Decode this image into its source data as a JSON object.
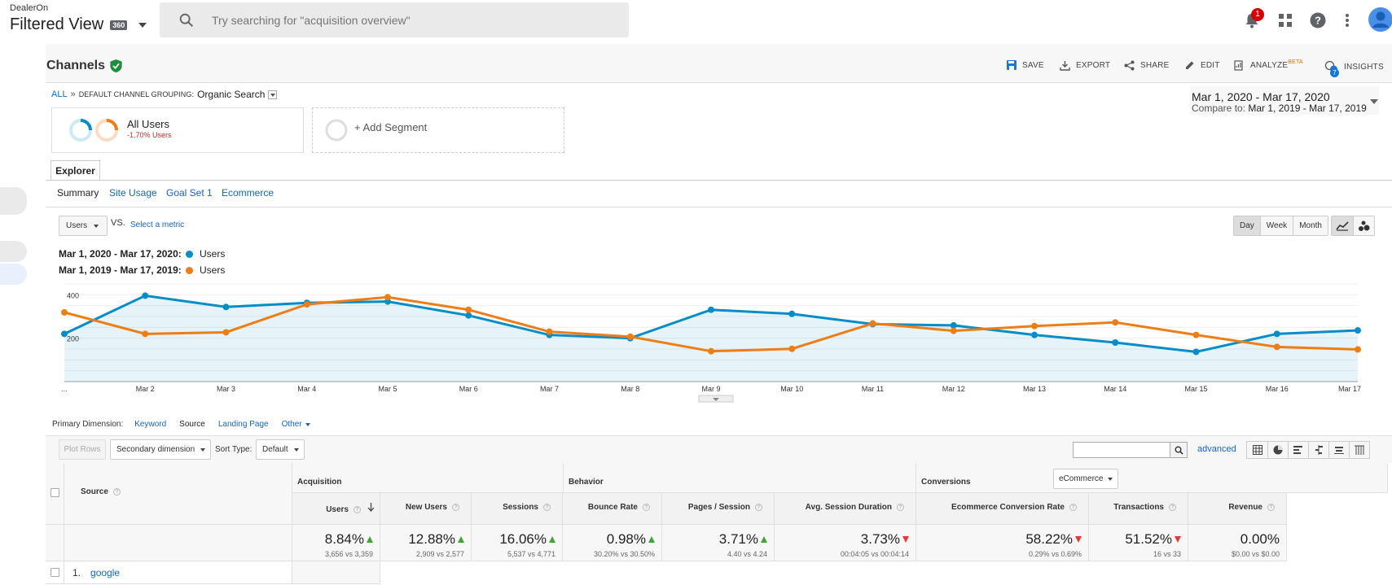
{
  "app": {
    "account": "DealerOn",
    "view": "Filtered View",
    "view_badge": "360",
    "search_placeholder": "Try searching for \"acquisition overview\"",
    "notification_count": "1"
  },
  "report": {
    "title": "Channels",
    "toolbar": {
      "save": "SAVE",
      "export": "EXPORT",
      "share": "SHARE",
      "edit": "EDIT",
      "analyze": "ANALYZE",
      "analyze_badge": "BETA",
      "insights": "INSIGHTS",
      "insights_count": "7"
    },
    "breadcrumb": {
      "all": "ALL",
      "sep": "»",
      "key": "DEFAULT CHANNEL GROUPING:",
      "value": "Organic Search"
    },
    "date_range": {
      "main": "Mar 1, 2020 - Mar 17, 2020",
      "compare_label": "Compare to:",
      "compare": "Mar 1, 2019 - Mar 17, 2019"
    },
    "segments": {
      "name": "All Users",
      "sub": "-1.70% Users",
      "add": "+ Add Segment"
    },
    "tabs": {
      "explorer": "Explorer",
      "sub": [
        "Summary",
        "Site Usage",
        "Goal Set 1",
        "Ecommerce"
      ]
    },
    "metric": {
      "selected": "Users",
      "vs": "VS.",
      "select": "Select a metric"
    },
    "periods": [
      "Day",
      "Week",
      "Month"
    ],
    "legend": [
      {
        "range": "Mar 1, 2020 - Mar 17, 2020:",
        "metric": "Users",
        "color": "#058dc7"
      },
      {
        "range": "Mar 1, 2019 - Mar 17, 2019:",
        "metric": "Users",
        "color": "#ed7e17"
      }
    ],
    "primary_dimension": {
      "label": "Primary Dimension:",
      "items": [
        "Keyword",
        "Source",
        "Landing Page",
        "Other"
      ],
      "active": "Source"
    },
    "controls": {
      "plot_rows": "Plot Rows",
      "secondary": "Secondary dimension",
      "sort_label": "Sort Type:",
      "sort_value": "Default",
      "advanced": "advanced"
    }
  },
  "chart_data": {
    "type": "line",
    "x": [
      "...",
      "Mar 2",
      "Mar 3",
      "Mar 4",
      "Mar 5",
      "Mar 6",
      "Mar 7",
      "Mar 8",
      "Mar 9",
      "Mar 10",
      "Mar 11",
      "Mar 12",
      "Mar 13",
      "Mar 14",
      "Mar 15",
      "Mar 16",
      "Mar 17"
    ],
    "y_ticks": [
      200,
      400
    ],
    "ylim": [
      0,
      450
    ],
    "series": [
      {
        "name": "Users",
        "period": "Mar 1, 2020 - Mar 17, 2020",
        "color": "#058dc7",
        "fill": true,
        "values": [
          220,
          396,
          344,
          363,
          369,
          305,
          215,
          200,
          331,
          312,
          265,
          259,
          215,
          180,
          137,
          220,
          236
        ]
      },
      {
        "name": "Users",
        "period": "Mar 1, 2019 - Mar 17, 2019",
        "color": "#ed7e17",
        "fill": false,
        "values": [
          319,
          220,
          227,
          356,
          389,
          331,
          230,
          207,
          140,
          151,
          268,
          234,
          256,
          273,
          215,
          160,
          148
        ]
      }
    ]
  },
  "table": {
    "groups": {
      "acquisition": "Acquisition",
      "behavior": "Behavior",
      "conversions": "Conversions",
      "conversions_select": "eCommerce"
    },
    "dim_header": "Source",
    "columns": [
      {
        "label": "Users",
        "pct": "8.84%",
        "dir": "up",
        "cmp": "3,656 vs 3,359"
      },
      {
        "label": "New Users",
        "pct": "12.88%",
        "dir": "up",
        "cmp": "2,909 vs 2,577"
      },
      {
        "label": "Sessions",
        "pct": "16.06%",
        "dir": "up",
        "cmp": "5,537 vs 4,771"
      },
      {
        "label": "Bounce Rate",
        "pct": "0.98%",
        "dir": "up",
        "cmp": "30.20% vs 30.50%"
      },
      {
        "label": "Pages / Session",
        "pct": "3.71%",
        "dir": "up",
        "cmp": "4.40 vs 4.24"
      },
      {
        "label": "Avg. Session Duration",
        "pct": "3.73%",
        "dir": "down",
        "cmp": "00:04:05 vs 00:04:14"
      },
      {
        "label": "Ecommerce Conversion Rate",
        "pct": "58.22%",
        "dir": "down",
        "cmp": "0.29% vs 0.69%"
      },
      {
        "label": "Transactions",
        "pct": "51.52%",
        "dir": "down",
        "cmp": "16 vs 33"
      },
      {
        "label": "Revenue",
        "pct": "0.00%",
        "dir": "none",
        "cmp": "$0.00 vs $0.00"
      }
    ],
    "rows": [
      {
        "index": "1.",
        "source": "google"
      }
    ]
  }
}
